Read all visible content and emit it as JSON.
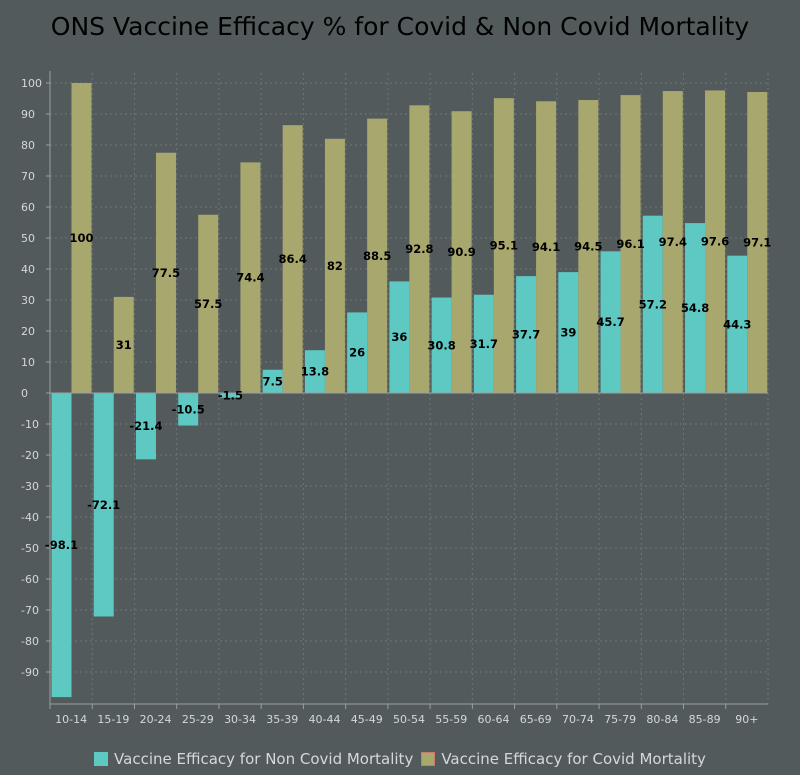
{
  "chart_data": {
    "type": "bar",
    "title": "ONS Vaccine Efficacy % for Covid & Non Covid Mortality",
    "xlabel": "",
    "ylabel": "",
    "ylim": [
      -100,
      100
    ],
    "yticks": [
      100,
      90,
      80,
      70,
      60,
      50,
      40,
      30,
      20,
      10,
      0,
      -10,
      -20,
      -30,
      -40,
      -50,
      -60,
      -70,
      -80,
      -90
    ],
    "grid": true,
    "legend": "bottom",
    "categories": [
      "10-14",
      "15-19",
      "20-24",
      "25-29",
      "30-34",
      "35-39",
      "40-44",
      "45-49",
      "50-54",
      "55-59",
      "60-64",
      "65-69",
      "70-74",
      "75-79",
      "80-84",
      "85-89",
      "90+"
    ],
    "series": [
      {
        "name": "Vaccine Efficacy for Non Covid Mortality",
        "color": "#5ec8c3",
        "values": [
          -98.1,
          -72.1,
          -21.4,
          -10.5,
          -1.5,
          7.5,
          13.8,
          26,
          36,
          30.8,
          31.7,
          37.7,
          39,
          45.7,
          57.2,
          54.8,
          44.3
        ]
      },
      {
        "name": "Vaccine Efficacy for Covid Mortality",
        "color": "#a8a86e",
        "values": [
          100,
          31,
          77.5,
          57.5,
          74.4,
          86.4,
          82,
          88.5,
          92.8,
          90.9,
          95.1,
          94.1,
          94.5,
          96.1,
          97.4,
          97.6,
          97.1
        ]
      }
    ]
  }
}
